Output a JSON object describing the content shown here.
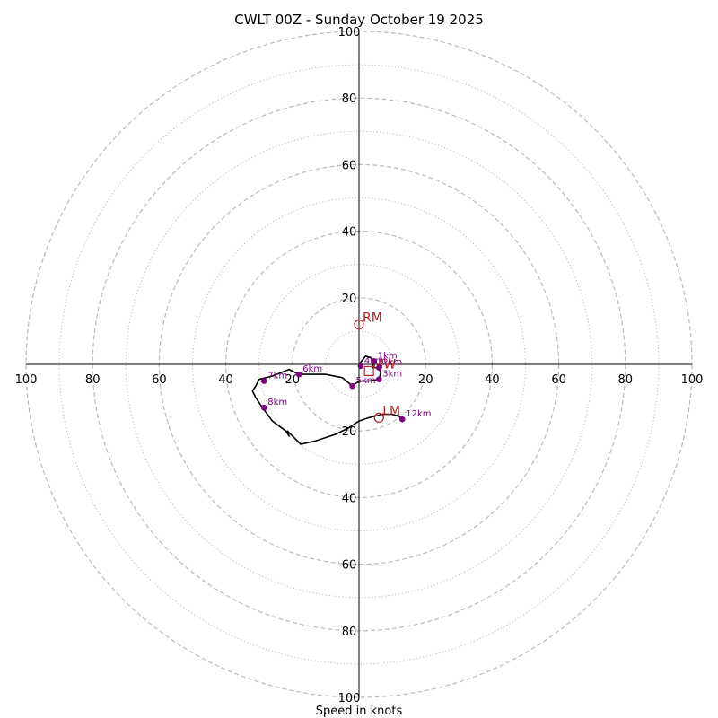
{
  "chart_data": {
    "type": "hodograph",
    "title": "CWLT 00Z - Sunday October 19 2025",
    "xlabel": "Speed in knots",
    "range": [
      -100,
      100
    ],
    "rings_dashed": [
      20,
      40,
      60,
      80,
      100
    ],
    "rings_dotted": [
      10,
      30,
      50,
      70,
      90
    ],
    "x_ticks": [
      {
        "value": -100,
        "label": "100"
      },
      {
        "value": -80,
        "label": "80"
      },
      {
        "value": -60,
        "label": "60"
      },
      {
        "value": -40,
        "label": "40"
      },
      {
        "value": -20,
        "label": "20"
      },
      {
        "value": 20,
        "label": "20"
      },
      {
        "value": 40,
        "label": "40"
      },
      {
        "value": 60,
        "label": "60"
      },
      {
        "value": 80,
        "label": "80"
      },
      {
        "value": 100,
        "label": "100"
      }
    ],
    "y_ticks": [
      {
        "value": 100,
        "label": "100"
      },
      {
        "value": 80,
        "label": "80"
      },
      {
        "value": 60,
        "label": "60"
      },
      {
        "value": 40,
        "label": "40"
      },
      {
        "value": 20,
        "label": "20"
      },
      {
        "value": -20,
        "label": "20"
      },
      {
        "value": -40,
        "label": "40"
      },
      {
        "value": -60,
        "label": "60"
      },
      {
        "value": -80,
        "label": "80"
      },
      {
        "value": -100,
        "label": "100"
      }
    ],
    "trace": [
      [
        0,
        0
      ],
      [
        2,
        2.5
      ],
      [
        3.5,
        2
      ],
      [
        4.5,
        1
      ],
      [
        4,
        -1
      ],
      [
        6,
        -1
      ],
      [
        6.5,
        -2.5
      ],
      [
        6,
        -4.5
      ],
      [
        3,
        -5
      ],
      [
        0,
        -5
      ],
      [
        -2,
        -6.5
      ],
      [
        -5,
        -4
      ],
      [
        -10,
        -3
      ],
      [
        -18,
        -3
      ],
      [
        -21,
        -1.5
      ],
      [
        -26,
        -3.5
      ],
      [
        -30,
        -4.5
      ],
      [
        -31,
        -6.5
      ],
      [
        -32,
        -8
      ],
      [
        -31,
        -10
      ],
      [
        -29,
        -13
      ],
      [
        -26,
        -17
      ],
      [
        -22,
        -20
      ],
      [
        -21,
        -21.5
      ],
      [
        -21.5,
        -20
      ],
      [
        -17.5,
        -24
      ],
      [
        -13,
        -23
      ],
      [
        -7,
        -21
      ],
      [
        -3,
        -19
      ],
      [
        0,
        -17
      ],
      [
        3,
        -16
      ],
      [
        7,
        -15
      ],
      [
        10,
        -15
      ],
      [
        12,
        -15.5
      ],
      [
        13,
        -16.5
      ]
    ],
    "height_markers": [
      {
        "label": "1km",
        "u": 4.5,
        "v": 1
      },
      {
        "label": "2km",
        "u": 6,
        "v": -1
      },
      {
        "label": "3km",
        "u": 6,
        "v": -4.5
      },
      {
        "label": "4km",
        "u": 0.5,
        "v": -0.5
      },
      {
        "label": "5km",
        "u": -2,
        "v": -6.5
      },
      {
        "label": "6km",
        "u": -18,
        "v": -3
      },
      {
        "label": "7km",
        "u": -28.5,
        "v": -5
      },
      {
        "label": "8km",
        "u": -28.5,
        "v": -13
      },
      {
        "label": "12km",
        "u": 13,
        "v": -16.5
      }
    ],
    "motions": [
      {
        "label": "RM",
        "u": 0,
        "v": 12,
        "shape": "circle"
      },
      {
        "label": "LM",
        "u": 6,
        "v": -16,
        "shape": "circle"
      },
      {
        "label": "MW",
        "u": 3,
        "v": -2,
        "shape": "square"
      }
    ],
    "colors": {
      "trace": "#000000",
      "marker": "#800080",
      "motion": "#b22222",
      "ring": "#bbbbbb"
    }
  }
}
